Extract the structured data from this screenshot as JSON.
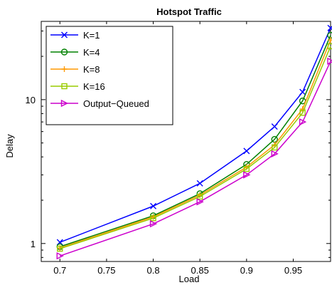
{
  "chart_data": {
    "type": "line",
    "title": "Hotspot Traffic",
    "xlabel": "Load",
    "ylabel": "Delay",
    "xlim": [
      0.68,
      0.99
    ],
    "ylim": [
      0.75,
      35
    ],
    "yscale": "log",
    "grid": false,
    "legend_position": "top-left",
    "x_ticks": [
      0.7,
      0.75,
      0.8,
      0.85,
      0.9,
      0.95
    ],
    "x_tick_labels": [
      "0.7",
      "0.75",
      "0.8",
      "0.85",
      "0.9",
      "0.95"
    ],
    "y_ticks": [
      1,
      10
    ],
    "y_tick_labels": [
      "1",
      "10"
    ],
    "x": [
      0.7,
      0.8,
      0.85,
      0.9,
      0.93,
      0.96,
      0.99
    ],
    "series": [
      {
        "name": "K=1",
        "color": "#0000ff",
        "marker": "x-mark",
        "values": [
          1.02,
          1.82,
          2.62,
          4.4,
          6.5,
          11.3,
          31.5
        ]
      },
      {
        "name": "K=4",
        "color": "#008000",
        "marker": "circle",
        "values": [
          0.95,
          1.56,
          2.22,
          3.55,
          5.3,
          9.8,
          28.0
        ]
      },
      {
        "name": "K=8",
        "color": "#ff9900",
        "marker": "plus",
        "values": [
          0.93,
          1.53,
          2.17,
          3.4,
          4.85,
          8.6,
          26.0
        ]
      },
      {
        "name": "K=16",
        "color": "#99cc00",
        "marker": "square",
        "values": [
          0.92,
          1.5,
          2.12,
          3.3,
          4.65,
          8.1,
          23.5
        ]
      },
      {
        "name": "Output−Queued",
        "color": "#cc00cc",
        "marker": "triangle-right",
        "values": [
          0.82,
          1.37,
          1.95,
          3.0,
          4.2,
          7.0,
          18.5
        ]
      }
    ]
  }
}
